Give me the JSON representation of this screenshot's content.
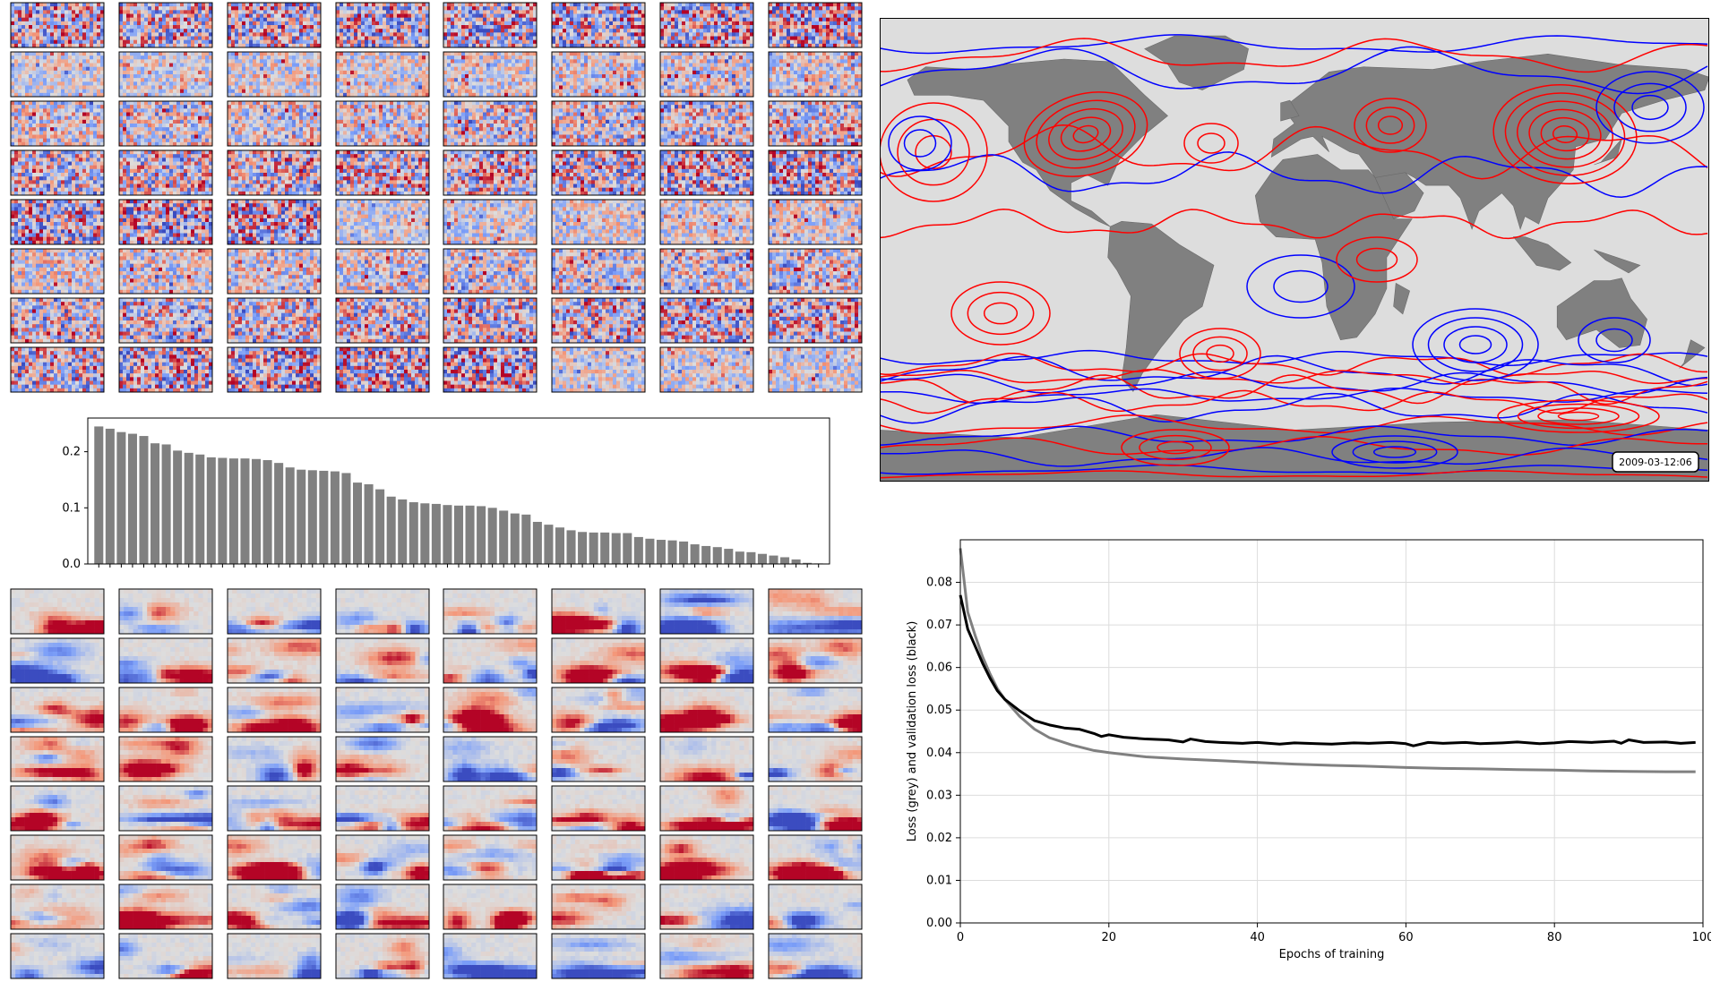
{
  "map": {
    "timestamp": "2009-03-12:06",
    "contour_colors": [
      "#ff0000",
      "#0000ff"
    ],
    "land_color": "#808080",
    "ocean_color": "#dddddd"
  },
  "weight_grids": {
    "rows": 8,
    "cols": 8,
    "colormap": "coolwarm",
    "top_style": "fine-noise",
    "bottom_style": "smooth-bands"
  },
  "chart_data": [
    {
      "type": "bar",
      "title": "",
      "xlabel": "",
      "ylabel": "",
      "ylim": [
        0,
        0.26
      ],
      "yticks": [
        "0.0",
        "0.1",
        "0.2"
      ],
      "bar_color": "#808080",
      "values": [
        0.245,
        0.241,
        0.235,
        0.232,
        0.228,
        0.215,
        0.213,
        0.202,
        0.198,
        0.195,
        0.19,
        0.189,
        0.188,
        0.188,
        0.187,
        0.185,
        0.18,
        0.172,
        0.168,
        0.167,
        0.166,
        0.165,
        0.162,
        0.145,
        0.142,
        0.133,
        0.12,
        0.115,
        0.11,
        0.108,
        0.107,
        0.105,
        0.104,
        0.104,
        0.103,
        0.1,
        0.095,
        0.09,
        0.088,
        0.075,
        0.07,
        0.065,
        0.06,
        0.057,
        0.056,
        0.056,
        0.055,
        0.055,
        0.048,
        0.045,
        0.043,
        0.042,
        0.04,
        0.035,
        0.032,
        0.03,
        0.027,
        0.022,
        0.021,
        0.018,
        0.015,
        0.012,
        0.008,
        0.002,
        0.001
      ]
    },
    {
      "type": "line",
      "title": "",
      "xlabel": "Epochs of training",
      "ylabel": "Loss (grey) and validation loss (black)",
      "xlim": [
        0,
        100
      ],
      "ylim": [
        0,
        0.09
      ],
      "xticks": [
        "0",
        "20",
        "40",
        "60",
        "80",
        "100"
      ],
      "yticks": [
        "0.00",
        "0.01",
        "0.02",
        "0.03",
        "0.04",
        "0.05",
        "0.06",
        "0.07",
        "0.08"
      ],
      "grid": true,
      "series": [
        {
          "color": "#808080",
          "x": [
            0,
            1,
            2,
            3,
            4,
            5,
            6,
            8,
            10,
            12,
            15,
            18,
            20,
            25,
            30,
            35,
            40,
            45,
            50,
            55,
            60,
            65,
            70,
            75,
            80,
            85,
            90,
            95,
            99
          ],
          "y": [
            0.088,
            0.073,
            0.0675,
            0.0625,
            0.0585,
            0.055,
            0.0525,
            0.0485,
            0.0455,
            0.0435,
            0.0418,
            0.0405,
            0.04,
            0.039,
            0.0385,
            0.0381,
            0.0377,
            0.0373,
            0.037,
            0.0368,
            0.0365,
            0.0363,
            0.0362,
            0.036,
            0.0359,
            0.0357,
            0.0356,
            0.0355,
            0.0355
          ]
        },
        {
          "color": "#000000",
          "x": [
            0,
            1,
            2,
            3,
            4,
            5,
            6,
            8,
            10,
            12,
            14,
            16,
            18,
            19,
            20,
            22,
            25,
            28,
            30,
            31,
            33,
            35,
            38,
            40,
            43,
            45,
            48,
            50,
            53,
            55,
            58,
            60,
            61,
            63,
            65,
            68,
            70,
            73,
            75,
            78,
            80,
            82,
            85,
            88,
            89,
            90,
            92,
            95,
            97,
            99
          ],
          "y": [
            0.077,
            0.069,
            0.065,
            0.061,
            0.0575,
            0.0545,
            0.0525,
            0.0498,
            0.0475,
            0.0465,
            0.0458,
            0.0455,
            0.0445,
            0.0438,
            0.0442,
            0.0436,
            0.0432,
            0.043,
            0.0425,
            0.0432,
            0.0426,
            0.0424,
            0.0422,
            0.0424,
            0.042,
            0.0423,
            0.0421,
            0.042,
            0.0423,
            0.0422,
            0.0424,
            0.0421,
            0.0416,
            0.0424,
            0.0422,
            0.0424,
            0.0421,
            0.0423,
            0.0425,
            0.0421,
            0.0423,
            0.0426,
            0.0424,
            0.0427,
            0.0422,
            0.043,
            0.0424,
            0.0425,
            0.0422,
            0.0424
          ]
        }
      ]
    }
  ]
}
